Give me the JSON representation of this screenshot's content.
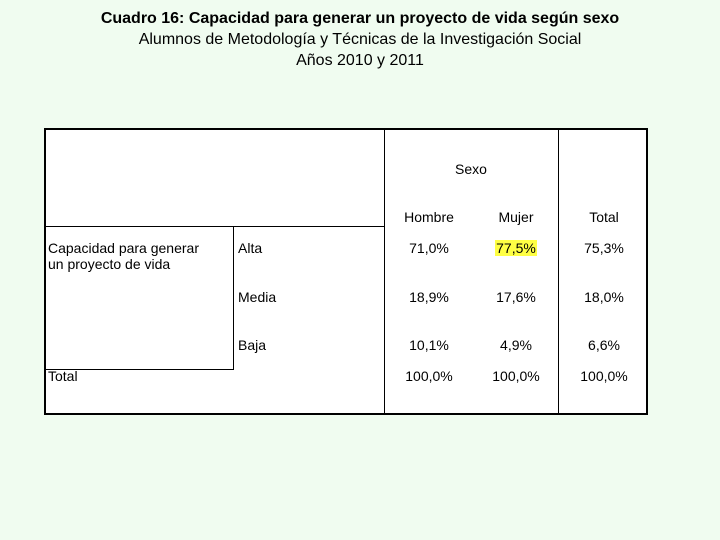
{
  "title": {
    "line1": "Cuadro 16:  Capacidad para generar un proyecto de vida según sexo",
    "line2": "Alumnos de Metodología y Técnicas de la Investigación Social",
    "line3": "Años 2010 y 2011"
  },
  "table": {
    "group_header": "Sexo",
    "columns": [
      "Hombre",
      "Mujer",
      "Total"
    ],
    "row_group_label_1": "Capacidad para generar",
    "row_group_label_2": "un proyecto de vida",
    "rows": [
      {
        "label": "Alta",
        "values": [
          "71,0%",
          "77,5%",
          "75,3%"
        ]
      },
      {
        "label": "Media",
        "values": [
          "18,9%",
          "17,6%",
          "18,0%"
        ]
      },
      {
        "label": "Baja",
        "values": [
          "10,1%",
          "4,9%",
          "6,6%"
        ]
      }
    ],
    "total_label": "Total",
    "total_values": [
      "100,0%",
      "100,0%",
      "100,0%"
    ],
    "highlight_color": "#ffff44"
  }
}
